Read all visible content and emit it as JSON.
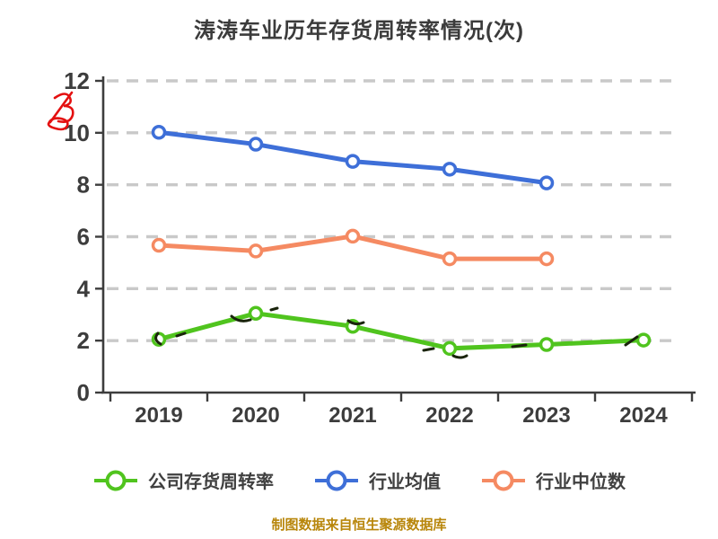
{
  "caption": "制图数据来自恒生聚源数据库",
  "chart_data": {
    "type": "line",
    "title": "涛涛车业历年存货周转率情况(次)",
    "categories": [
      "2019",
      "2020",
      "2021",
      "2022",
      "2023",
      "2024"
    ],
    "series": [
      {
        "key": "company-inventory-turnover",
        "name": "公司存货周转率",
        "color": "#50c41e",
        "values": [
          2.05,
          3.05,
          2.55,
          1.7,
          1.85,
          2.02
        ]
      },
      {
        "key": "industry-mean",
        "name": "行业均值",
        "color": "#3e6fd8",
        "values": [
          10.02,
          9.56,
          8.9,
          8.6,
          8.07,
          null
        ]
      },
      {
        "key": "industry-median",
        "name": "行业中位数",
        "color": "#f58a62",
        "values": [
          5.67,
          5.45,
          6.02,
          5.15,
          5.15,
          null
        ]
      }
    ],
    "ylim": [
      0,
      12
    ],
    "yticks": [
      0,
      2,
      4,
      6,
      8,
      10,
      12
    ],
    "grid": "horizontal-dashed",
    "legend_position": "bottom",
    "marker_style": "circle-white-fill"
  },
  "annotations": {
    "red_scribble": {
      "description": "hand-drawn red scribble left of y-axis",
      "color": "#e41010"
    },
    "pen_marks": {
      "description": "small dark pen strokes along company series line",
      "color": "#1a240c"
    }
  }
}
